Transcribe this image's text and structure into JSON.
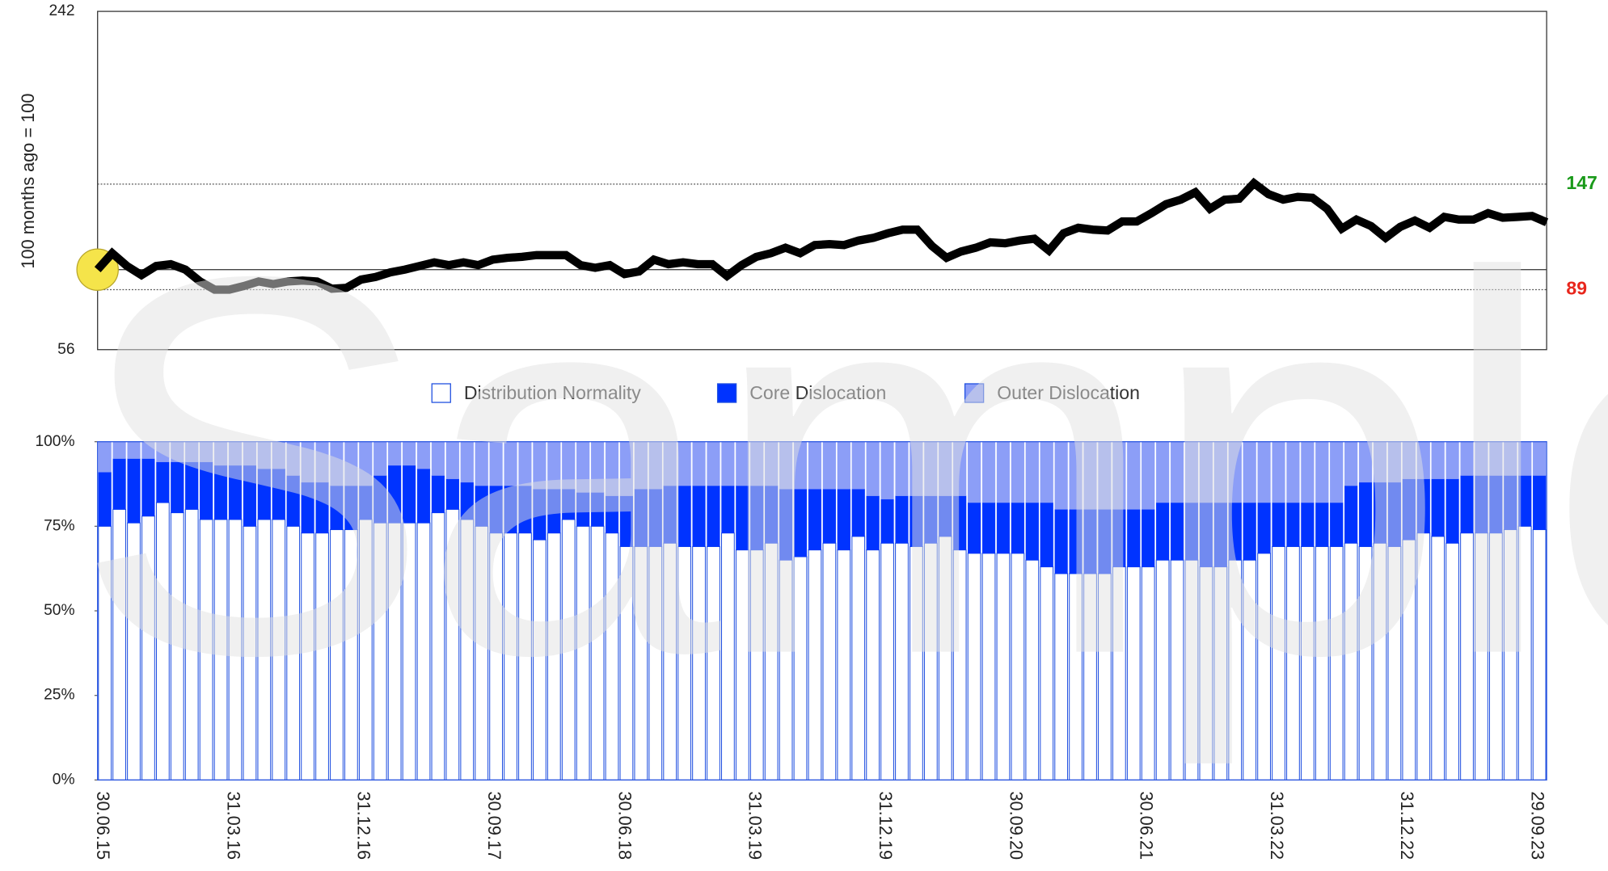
{
  "chart_data": [
    {
      "type": "line",
      "y_label": "100 months ago = 100",
      "color": "#000000",
      "ylim": [
        56,
        242
      ],
      "yticks": [
        56,
        242
      ],
      "hlines": [
        {
          "value": 147,
          "color": "#1a9a1a",
          "style": "dotted",
          "labeled": true
        },
        {
          "value": 89,
          "color": "#e8261c",
          "style": "dotted",
          "labeled": true
        },
        {
          "value": 100,
          "color": "#000000",
          "style": "solid",
          "labeled": false
        }
      ],
      "values": [
        100,
        109,
        102,
        97,
        102,
        103,
        100,
        93.5,
        89,
        89,
        91,
        93.5,
        92,
        93.5,
        94,
        93.5,
        89.5,
        90,
        94.5,
        96,
        98.5,
        100,
        102,
        104,
        102.5,
        104,
        102.5,
        105.5,
        106.5,
        107,
        108,
        108,
        108,
        102.5,
        101,
        102.5,
        97.5,
        99,
        105.5,
        103,
        104,
        103,
        103,
        96.5,
        102.5,
        107,
        109,
        112,
        109,
        113.5,
        114,
        113.5,
        116,
        117.5,
        120,
        122,
        122,
        113,
        106.5,
        110,
        112,
        115,
        114.5,
        116,
        117,
        110.5,
        120,
        123,
        122,
        121.5,
        126.5,
        126.5,
        131,
        136,
        138.5,
        142.5,
        133.5,
        138.5,
        139,
        147.5,
        141.5,
        138.5,
        140,
        139.5,
        133.5,
        122.5,
        127.5,
        124,
        117.5,
        123.5,
        127,
        123,
        129,
        127.5,
        127.5,
        131,
        128.5,
        129,
        129.5,
        126
      ]
    },
    {
      "type": "bar",
      "stacked": true,
      "categories": [
        "30.06.15",
        null,
        null,
        null,
        null,
        null,
        null,
        null,
        null,
        "31.03.16",
        null,
        null,
        null,
        null,
        null,
        null,
        null,
        null,
        "31.12.16",
        null,
        null,
        null,
        null,
        null,
        null,
        null,
        null,
        "30.09.17",
        null,
        null,
        null,
        null,
        null,
        null,
        null,
        null,
        "30.06.18",
        null,
        null,
        null,
        null,
        null,
        null,
        null,
        null,
        "31.03.19",
        null,
        null,
        null,
        null,
        null,
        null,
        null,
        null,
        "31.12.19",
        null,
        null,
        null,
        null,
        null,
        null,
        null,
        null,
        "30.09.20",
        null,
        null,
        null,
        null,
        null,
        null,
        null,
        null,
        "30.06.21",
        null,
        null,
        null,
        null,
        null,
        null,
        null,
        null,
        "31.03.22",
        null,
        null,
        null,
        null,
        null,
        null,
        null,
        null,
        "31.12.22",
        null,
        null,
        null,
        null,
        null,
        null,
        null,
        null,
        "29.09.23"
      ],
      "ylim": [
        0,
        100
      ],
      "yticks": [
        {
          "value": 0,
          "label": "0%"
        },
        {
          "value": 25,
          "label": "25%"
        },
        {
          "value": 50,
          "label": "50%"
        },
        {
          "value": 75,
          "label": "75%"
        },
        {
          "value": 100,
          "label": "100%"
        }
      ],
      "series": [
        {
          "name": "Distribution Normality",
          "color": "#ffffff",
          "border": "#1f4fe0",
          "values": [
            75,
            80,
            76,
            78,
            82,
            79,
            80,
            77,
            77,
            77,
            75,
            77,
            77,
            75,
            73,
            73,
            74,
            74,
            77,
            76,
            76,
            76,
            76,
            79,
            80,
            77,
            75,
            73,
            73,
            73,
            71,
            73,
            77,
            75,
            75,
            73,
            69,
            69,
            69,
            70,
            69,
            69,
            69,
            73,
            68,
            68,
            70,
            65,
            66,
            68,
            70,
            68,
            72,
            68,
            70,
            70,
            69,
            70,
            72,
            68,
            67,
            67,
            67,
            67,
            65,
            63,
            61,
            61,
            61,
            61,
            63,
            63,
            63,
            65,
            65,
            65,
            63,
            63,
            65,
            65,
            67,
            69,
            69,
            69,
            69,
            69,
            70,
            69,
            70,
            69,
            71,
            73,
            72,
            70,
            73,
            73,
            73,
            74,
            75,
            74
          ]
        },
        {
          "name": "Core Dislocation",
          "color": "#0033ff",
          "values": [
            16,
            15,
            19,
            17,
            12,
            15,
            14,
            17,
            16,
            16,
            18,
            15,
            15,
            15,
            15,
            15,
            13,
            13,
            10,
            14,
            17,
            17,
            16,
            11,
            9,
            11,
            12,
            14,
            14,
            14,
            15,
            13,
            9,
            10,
            10,
            11,
            15,
            17,
            17,
            17,
            18,
            18,
            18,
            14,
            19,
            19,
            17,
            21,
            20,
            18,
            16,
            18,
            14,
            16,
            13,
            14,
            15,
            14,
            12,
            16,
            15,
            15,
            15,
            15,
            17,
            19,
            19,
            19,
            19,
            19,
            17,
            17,
            17,
            17,
            17,
            17,
            19,
            19,
            17,
            17,
            15,
            13,
            13,
            13,
            13,
            13,
            17,
            19,
            18,
            19,
            18,
            16,
            17,
            19,
            17,
            17,
            17,
            16,
            15,
            16
          ]
        },
        {
          "name": "Outer Dislocation",
          "color": "#8c9ef7",
          "values": [
            9,
            5,
            5,
            5,
            6,
            6,
            6,
            6,
            7,
            7,
            7,
            8,
            8,
            10,
            12,
            12,
            13,
            13,
            13,
            10,
            7,
            7,
            8,
            10,
            11,
            12,
            13,
            13,
            13,
            13,
            14,
            14,
            14,
            15,
            15,
            16,
            16,
            14,
            14,
            13,
            13,
            13,
            13,
            13,
            13,
            13,
            13,
            14,
            14,
            14,
            14,
            14,
            14,
            16,
            17,
            16,
            16,
            16,
            16,
            16,
            18,
            18,
            18,
            18,
            18,
            18,
            20,
            20,
            20,
            20,
            20,
            20,
            20,
            18,
            18,
            18,
            18,
            18,
            18,
            18,
            18,
            18,
            18,
            18,
            18,
            18,
            13,
            12,
            12,
            12,
            11,
            11,
            11,
            11,
            10,
            10,
            10,
            10,
            10,
            10
          ]
        }
      ]
    }
  ],
  "watermark": "Sample"
}
